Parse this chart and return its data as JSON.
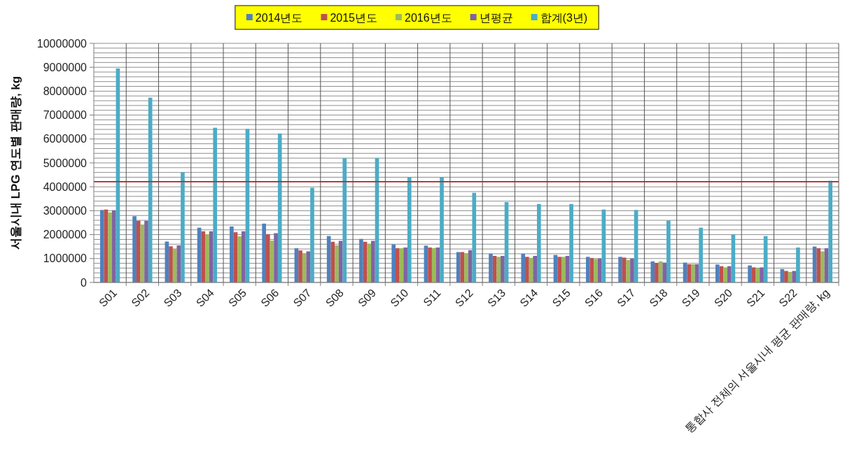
{
  "chart_data": {
    "type": "bar",
    "ylabel": "서울시내 LPG 연도별 판매량, kg",
    "categories": [
      "S01",
      "S02",
      "S03",
      "S04",
      "S05",
      "S06",
      "S07",
      "S08",
      "S09",
      "S10",
      "S11",
      "S12",
      "S13",
      "S14",
      "S15",
      "S16",
      "S17",
      "S18",
      "S19",
      "S20",
      "S21",
      "S22",
      "통합사 전체의 서울시내 평균 판매량, kg"
    ],
    "series": [
      {
        "name": "2014년도",
        "color": "#4f81bd",
        "values": [
          3030000,
          2770000,
          1710000,
          2290000,
          2340000,
          2460000,
          1430000,
          1940000,
          1820000,
          1590000,
          1540000,
          1270000,
          1200000,
          1200000,
          1150000,
          1070000,
          1070000,
          880000,
          830000,
          750000,
          710000,
          560000,
          1500000
        ]
      },
      {
        "name": "2015년도",
        "color": "#c0504d",
        "values": [
          3050000,
          2580000,
          1510000,
          2140000,
          2100000,
          2020000,
          1340000,
          1700000,
          1700000,
          1430000,
          1460000,
          1270000,
          1110000,
          1070000,
          1070000,
          1020000,
          1040000,
          820000,
          760000,
          680000,
          630000,
          480000,
          1430000
        ]
      },
      {
        "name": "2016년도",
        "color": "#9bbb59",
        "values": [
          2930000,
          2410000,
          1410000,
          2020000,
          1930000,
          1750000,
          1220000,
          1550000,
          1620000,
          1430000,
          1440000,
          1220000,
          1070000,
          1030000,
          1070000,
          980000,
          940000,
          880000,
          760000,
          630000,
          590000,
          440000,
          1300000
        ]
      },
      {
        "name": "년평균",
        "color": "#8064a2",
        "values": [
          3020000,
          2580000,
          1550000,
          2140000,
          2140000,
          2060000,
          1300000,
          1740000,
          1740000,
          1460000,
          1460000,
          1350000,
          1110000,
          1110000,
          1110000,
          1000000,
          1000000,
          830000,
          760000,
          680000,
          630000,
          480000,
          1430000
        ]
      },
      {
        "name": "합계(3년)",
        "color": "#4bacc6",
        "values": [
          8950000,
          7730000,
          4610000,
          6470000,
          6420000,
          6230000,
          3960000,
          5200000,
          5200000,
          4390000,
          4390000,
          3750000,
          3360000,
          3280000,
          3280000,
          3050000,
          3030000,
          2590000,
          2290000,
          2000000,
          1940000,
          1460000,
          4250000
        ]
      }
    ],
    "ylim": [
      0,
      10000000
    ],
    "yticks": [
      0,
      {
        "value": 200000,
        "label": null
      },
      {
        "value": 400000,
        "label": null
      },
      {
        "value": 600000,
        "label": null
      },
      {
        "value": 800000,
        "label": null
      },
      1000000,
      {
        "value": 1200000,
        "label": null
      },
      {
        "value": 1400000,
        "label": null
      },
      {
        "value": 1600000,
        "label": null
      },
      {
        "value": 1800000,
        "label": null
      },
      2000000,
      {
        "value": 2200000,
        "label": null
      },
      {
        "value": 2400000,
        "label": null
      },
      {
        "value": 2600000,
        "label": null
      },
      {
        "value": 2800000,
        "label": null
      },
      3000000,
      {
        "value": 3200000,
        "label": null
      },
      {
        "value": 3400000,
        "label": null
      },
      {
        "value": 3600000,
        "label": null
      },
      {
        "value": 3800000,
        "label": null
      },
      4000000,
      {
        "value": 4200000,
        "label": null
      },
      {
        "value": 4400000,
        "label": null
      },
      {
        "value": 4600000,
        "label": null
      },
      {
        "value": 4800000,
        "label": null
      },
      5000000,
      {
        "value": 5200000,
        "label": null
      },
      {
        "value": 5400000,
        "label": null
      },
      {
        "value": 5600000,
        "label": null
      },
      {
        "value": 5800000,
        "label": null
      },
      6000000,
      {
        "value": 6200000,
        "label": null
      },
      {
        "value": 6400000,
        "label": null
      },
      {
        "value": 6600000,
        "label": null
      },
      {
        "value": 6800000,
        "label": null
      },
      7000000,
      {
        "value": 7200000,
        "label": null
      },
      {
        "value": 7400000,
        "label": null
      },
      {
        "value": 7600000,
        "label": null
      },
      {
        "value": 7800000,
        "label": null
      },
      8000000,
      {
        "value": 8200000,
        "label": null
      },
      {
        "value": 8400000,
        "label": null
      },
      {
        "value": 8600000,
        "label": null
      },
      {
        "value": 8800000,
        "label": null
      },
      9000000,
      {
        "value": 9200000,
        "label": null
      },
      {
        "value": 9400000,
        "label": null
      },
      {
        "value": 9600000,
        "label": null
      },
      {
        "value": 9800000,
        "label": null
      },
      10000000
    ],
    "grid": true,
    "legend": "top",
    "ref_lines": [
      {
        "axis": "y",
        "value": 4220000,
        "color": "#ff0000"
      }
    ]
  }
}
